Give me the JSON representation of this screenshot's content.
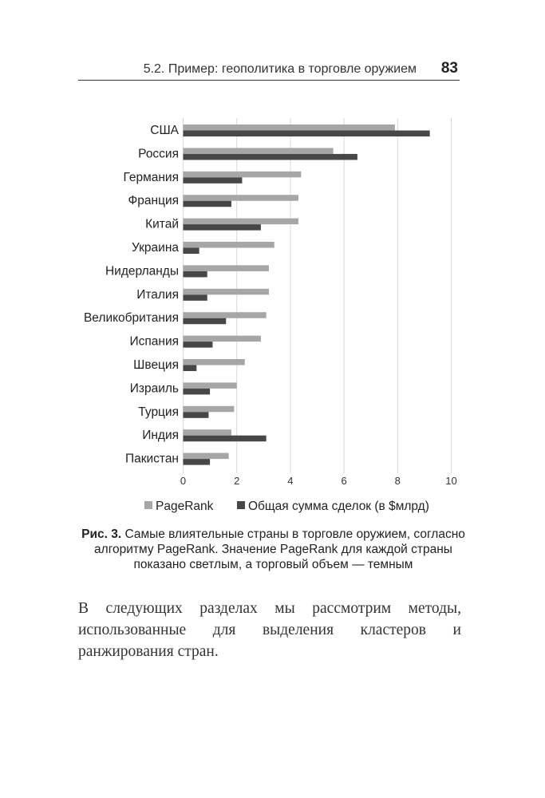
{
  "header": {
    "section_title": "5.2. Пример: геополитика в торговле оружием",
    "page_number": "83"
  },
  "chart_data": {
    "type": "bar",
    "orientation": "horizontal",
    "categories": [
      "США",
      "Россия",
      "Германия",
      "Франция",
      "Китай",
      "Украина",
      "Нидерланды",
      "Италия",
      "Великобритания",
      "Испания",
      "Швеция",
      "Израиль",
      "Турция",
      "Индия",
      "Пакистан"
    ],
    "series": [
      {
        "name": "PageRank",
        "color": "#a6a6a6",
        "values": [
          7.9,
          5.6,
          4.4,
          4.3,
          4.3,
          3.4,
          3.2,
          3.2,
          3.1,
          2.9,
          2.3,
          2.0,
          1.9,
          1.8,
          1.7
        ]
      },
      {
        "name": "Общая сумма сделок (в $млрд)",
        "color": "#474747",
        "values": [
          9.2,
          6.5,
          2.2,
          1.8,
          2.9,
          0.6,
          0.9,
          0.9,
          1.6,
          1.1,
          0.5,
          1.0,
          0.95,
          3.1,
          1.0
        ]
      }
    ],
    "xlim": [
      0,
      10
    ],
    "xticks": [
      "0",
      "2",
      "4",
      "6",
      "8",
      "10"
    ],
    "grid": true,
    "legend_placement": "bottom"
  },
  "caption": {
    "label": "Рис. 3.",
    "text": " Самые влиятельные страны в торговле оружием, согласно алгоритму PageRank. Значение PageRank для каждой страны показано светлым, а торговый объем — темным"
  },
  "body_text": "В следующих разделах мы рассмотрим методы, использованные для выделения кластеров и ранжирования стран."
}
